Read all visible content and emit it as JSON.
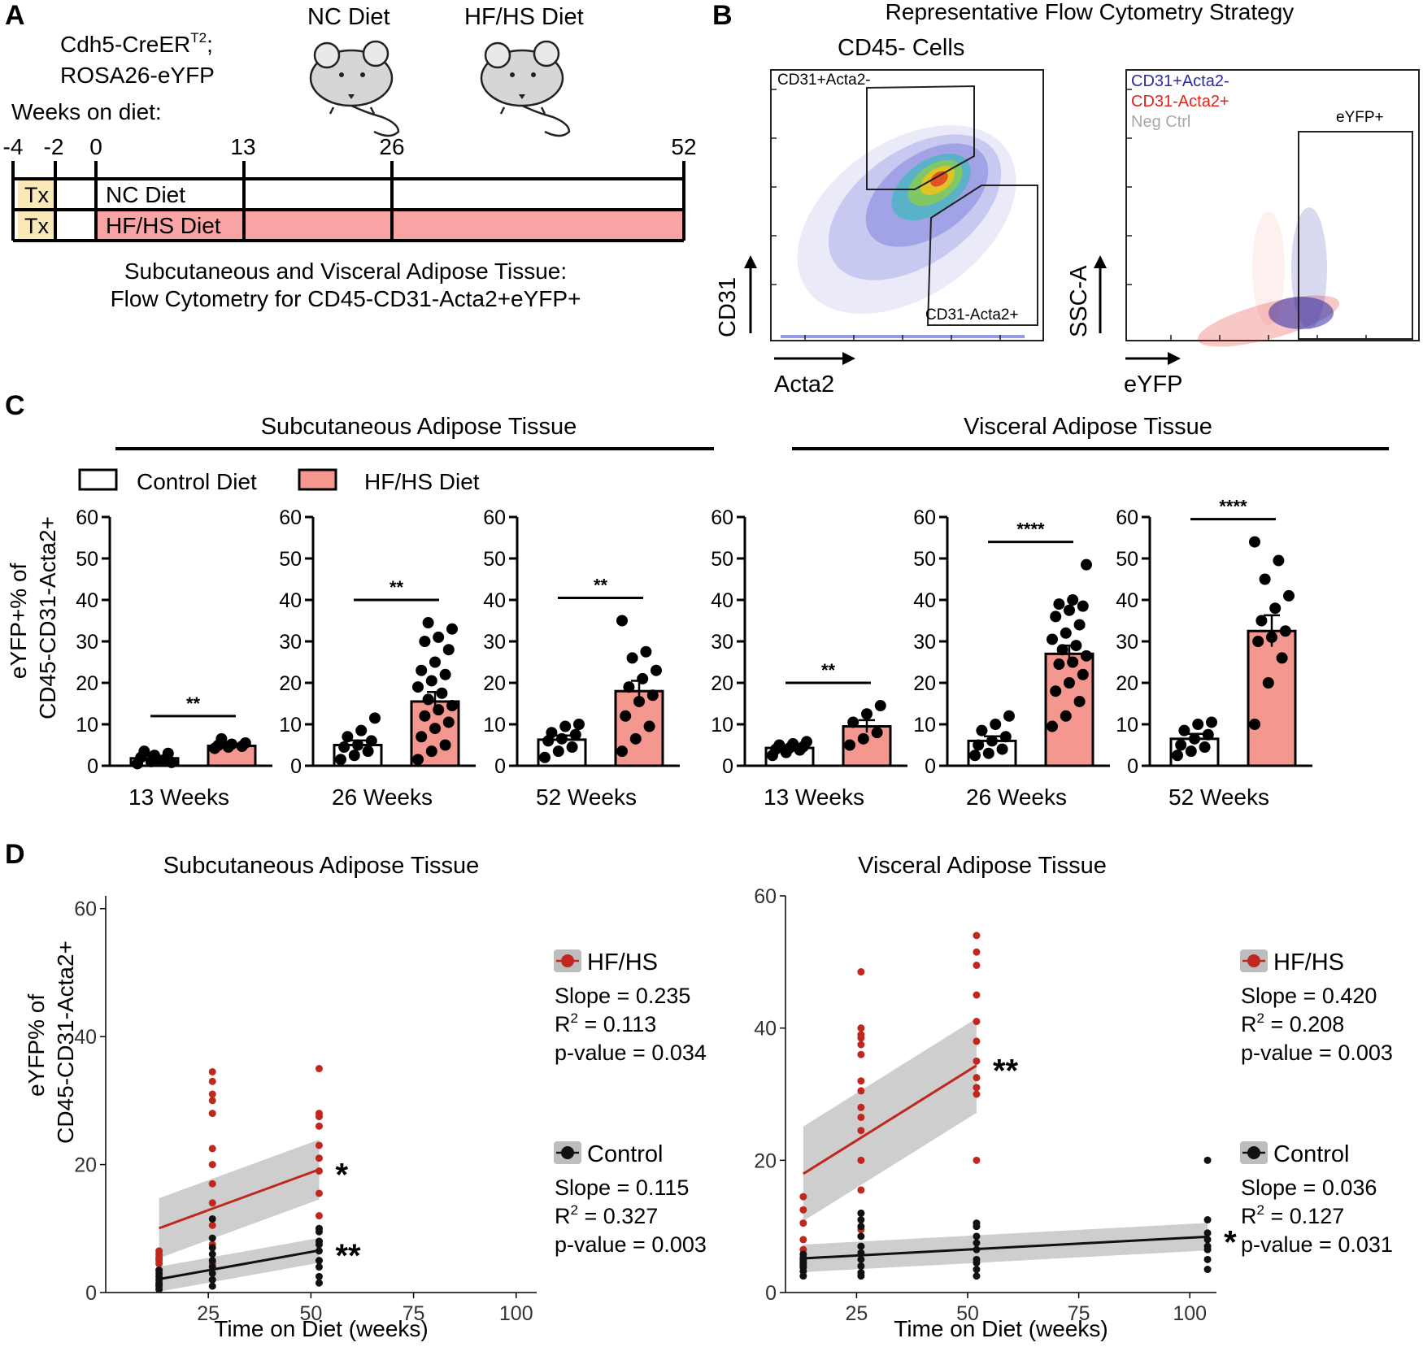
{
  "colors": {
    "hfhs_bar": "#f4978e",
    "hfhs_line": "#c0281f",
    "control_line": "#111111",
    "tx_box": "#fbe8b8",
    "hfhs_timeline": "#f8a4a4",
    "band": "#bdbdbd",
    "gate_blue": "#2b2ba8",
    "gate_red": "#e0241c",
    "gate_grey": "#a8a8a8"
  },
  "panel_a": {
    "letter": "A",
    "mouse_line1": "Cdh5-CreER",
    "mouse_sup": "T2",
    "mouse_line1_end": ";",
    "mouse_line2": "ROSA26-eYFP",
    "nc_diet_title": "NC Diet",
    "hfhs_diet_title": "HF/HS Diet",
    "weeks_label": "Weeks on diet:",
    "week_ticks": [
      "-4",
      "-2",
      "0",
      "13",
      "26",
      "52"
    ],
    "tx_label": "Tx",
    "nc_row_label": "NC Diet",
    "hfhs_row_label": "HF/HS Diet",
    "caption_line1": "Subcutaneous and Visceral Adipose Tissue:",
    "caption_line2": "Flow Cytometry for CD45-CD31-Acta2+eYFP+"
  },
  "panel_b": {
    "letter": "B",
    "title": "Representative Flow Cytometry Strategy",
    "plot1_title": "CD45- Cells",
    "gate_upper": "CD31+Acta2-",
    "gate_lower": "CD31-Acta2+",
    "plot1_ylabel": "CD31",
    "plot1_xlabel": "Acta2",
    "legend": [
      {
        "label": "CD31+Acta2-",
        "color": "#2b2ba8"
      },
      {
        "label": "CD31-Acta2+",
        "color": "#e0241c"
      },
      {
        "label": "Neg Ctrl",
        "color": "#a8a8a8"
      }
    ],
    "gate_eyfp": "eYFP+",
    "plot2_ylabel": "SSC-A",
    "plot2_xlabel": "eYFP"
  },
  "panel_c": {
    "letter": "C",
    "group_sub": "Subcutaneous Adipose Tissue",
    "group_vis": "Visceral Adipose Tissue",
    "legend_control": "Control Diet",
    "legend_hfhs": "HF/HS Diet",
    "ylabel1": "eYFP+% of",
    "ylabel2": "CD45-CD31-Acta2+"
  },
  "panel_d": {
    "letter": "D",
    "ylabel1": "eYFP% of",
    "ylabel2": "CD45-CD31-Acta2+",
    "xlabel": "Time on Diet (weeks)"
  },
  "chart_data": [
    {
      "type": "bar",
      "panel": "C",
      "tissue": "Subcutaneous Adipose Tissue",
      "xlabel": "13 Weeks",
      "ylim": [
        0,
        60
      ],
      "yticks": [
        0,
        10,
        20,
        30,
        40,
        50,
        60
      ],
      "categories": [
        "Control Diet",
        "HF/HS Diet"
      ],
      "series": [
        {
          "name": "Control Diet",
          "mean": 1.8,
          "sem": 0.6,
          "points": [
            0.5,
            1.0,
            1.5,
            2.0,
            2.5,
            3.0,
            3.5,
            1.2,
            0.8
          ]
        },
        {
          "name": "HF/HS Diet",
          "mean": 4.8,
          "sem": 0.4,
          "points": [
            4.2,
            4.5,
            4.7,
            4.9,
            5.2,
            5.5,
            6.5
          ]
        }
      ],
      "significance": "**"
    },
    {
      "type": "bar",
      "panel": "C",
      "tissue": "Subcutaneous Adipose Tissue",
      "xlabel": "26 Weeks",
      "ylim": [
        0,
        60
      ],
      "yticks": [
        0,
        10,
        20,
        30,
        40,
        50,
        60
      ],
      "categories": [
        "Control Diet",
        "HF/HS Diet"
      ],
      "series": [
        {
          "name": "Control Diet",
          "mean": 5.0,
          "sem": 1.1,
          "points": [
            1.5,
            2.5,
            3.5,
            4.5,
            5.0,
            6.0,
            7.0,
            8.5,
            11.5
          ]
        },
        {
          "name": "HF/HS Diet",
          "mean": 15.5,
          "sem": 2.3,
          "points": [
            1.5,
            3.5,
            5.0,
            7.0,
            9.0,
            10.5,
            12.0,
            13.5,
            14.5,
            16.0,
            17.5,
            19.0,
            20.5,
            22.0,
            23.0,
            25.0,
            28.0,
            30.0,
            31.0,
            33.0,
            34.5
          ]
        }
      ],
      "significance": "**"
    },
    {
      "type": "bar",
      "panel": "C",
      "tissue": "Subcutaneous Adipose Tissue",
      "xlabel": "52 Weeks",
      "ylim": [
        0,
        60
      ],
      "yticks": [
        0,
        10,
        20,
        30,
        40,
        50,
        60
      ],
      "categories": [
        "Control Diet",
        "HF/HS Diet"
      ],
      "series": [
        {
          "name": "Control Diet",
          "mean": 6.3,
          "sem": 1.0,
          "points": [
            2.0,
            3.5,
            4.5,
            6.0,
            6.5,
            7.5,
            8.0,
            9.5,
            10.0
          ]
        },
        {
          "name": "HF/HS Diet",
          "mean": 18.0,
          "sem": 2.5,
          "points": [
            3.5,
            6.5,
            9.5,
            12.0,
            15.5,
            17.0,
            19.0,
            21.0,
            23.0,
            26.0,
            27.5,
            35.0
          ]
        }
      ],
      "significance": "**"
    },
    {
      "type": "bar",
      "panel": "C",
      "tissue": "Visceral Adipose Tissue",
      "xlabel": "13 Weeks",
      "ylim": [
        0,
        60
      ],
      "yticks": [
        0,
        10,
        20,
        30,
        40,
        50,
        60
      ],
      "categories": [
        "Control Diet",
        "HF/HS Diet"
      ],
      "series": [
        {
          "name": "Control Diet",
          "mean": 4.3,
          "sem": 0.4,
          "points": [
            2.5,
            3.2,
            3.8,
            4.0,
            4.3,
            4.6,
            5.0,
            5.3,
            5.8
          ]
        },
        {
          "name": "HF/HS Diet",
          "mean": 9.5,
          "sem": 1.5,
          "points": [
            5.0,
            6.5,
            8.0,
            10.5,
            12.5,
            14.5
          ]
        }
      ],
      "significance": "**"
    },
    {
      "type": "bar",
      "panel": "C",
      "tissue": "Visceral Adipose Tissue",
      "xlabel": "26 Weeks",
      "ylim": [
        0,
        60
      ],
      "yticks": [
        0,
        10,
        20,
        30,
        40,
        50,
        60
      ],
      "categories": [
        "Control Diet",
        "HF/HS Diet"
      ],
      "series": [
        {
          "name": "Control Diet",
          "mean": 6.0,
          "sem": 1.1,
          "points": [
            2.5,
            3.0,
            4.0,
            5.0,
            6.0,
            7.0,
            8.5,
            10.0,
            12.0
          ]
        },
        {
          "name": "HF/HS Diet",
          "mean": 27.0,
          "sem": 2.0,
          "points": [
            9.5,
            12.0,
            15.5,
            18.0,
            20.0,
            22.0,
            24.5,
            25.0,
            26.5,
            28.0,
            29.0,
            30.5,
            32.0,
            34.0,
            36.0,
            37.5,
            38.5,
            39.0,
            40.0,
            48.5
          ]
        }
      ],
      "significance": "****"
    },
    {
      "type": "bar",
      "panel": "C",
      "tissue": "Visceral Adipose Tissue",
      "xlabel": "52 Weeks",
      "ylim": [
        0,
        60
      ],
      "yticks": [
        0,
        10,
        20,
        30,
        40,
        50,
        60
      ],
      "categories": [
        "Control Diet",
        "HF/HS Diet"
      ],
      "series": [
        {
          "name": "Control Diet",
          "mean": 6.5,
          "sem": 1.2,
          "points": [
            2.5,
            3.5,
            4.5,
            5.0,
            6.5,
            7.5,
            8.5,
            10.0,
            10.5
          ]
        },
        {
          "name": "HF/HS Diet",
          "mean": 32.5,
          "sem": 3.8,
          "points": [
            10.0,
            20.0,
            26.0,
            30.0,
            31.0,
            32.5,
            35.0,
            38.0,
            41.0,
            45.0,
            49.5,
            54.0
          ]
        }
      ],
      "significance": "****"
    },
    {
      "type": "scatter",
      "panel": "D",
      "title": "Subcutaneous Adipose Tissue",
      "xlabel": "Time on Diet (weeks)",
      "ylabel": "eYFP% of CD45-CD31-Acta2+",
      "xlim": [
        0,
        105
      ],
      "ylim": [
        0,
        62
      ],
      "xticks": [
        25,
        50,
        75,
        100
      ],
      "yticks": [
        0,
        20,
        40,
        60
      ],
      "series": [
        {
          "name": "HF/HS",
          "color": "#c0281f",
          "slope_text": "Slope = 0.235",
          "r2_value": "= 0.113",
          "p_text": "p-value = 0.034",
          "significance": "*",
          "fit": {
            "slope": 0.235,
            "intercept": 7.0,
            "x0": 13,
            "x1": 52,
            "ci": 3.6
          },
          "x": [
            13,
            13,
            13,
            13,
            13,
            13,
            13,
            26,
            26,
            26,
            26,
            26,
            26,
            26,
            26,
            26,
            26,
            26,
            26,
            26,
            52,
            52,
            52,
            52,
            52,
            52,
            52,
            52,
            52,
            52,
            52,
            52
          ],
          "y": [
            3.5,
            4.5,
            5.0,
            5.2,
            5.5,
            6.0,
            6.5,
            2.0,
            4.5,
            7.5,
            10.5,
            14.0,
            17.0,
            20.0,
            22.5,
            28.0,
            30.0,
            31.0,
            33.0,
            34.5,
            5.0,
            8.0,
            10.0,
            12.0,
            15.5,
            19.0,
            21.0,
            23.0,
            26.0,
            27.5,
            28.0,
            35.0
          ]
        },
        {
          "name": "Control",
          "color": "#111111",
          "slope_text": "Slope = 0.115",
          "r2_value": "= 0.327",
          "p_text": "p-value = 0.003",
          "significance": "**",
          "fit": {
            "slope": 0.115,
            "intercept": 0.6,
            "x0": 13,
            "x1": 52,
            "ci": 1.5
          },
          "x": [
            13,
            13,
            13,
            13,
            13,
            13,
            13,
            13,
            26,
            26,
            26,
            26,
            26,
            26,
            26,
            26,
            26,
            52,
            52,
            52,
            52,
            52,
            52,
            52,
            52,
            52
          ],
          "y": [
            0.5,
            1.0,
            1.2,
            1.5,
            2.0,
            2.5,
            3.0,
            3.5,
            1.0,
            2.0,
            3.0,
            4.0,
            5.0,
            6.0,
            7.0,
            8.5,
            11.5,
            1.5,
            2.5,
            4.0,
            5.0,
            6.5,
            7.5,
            8.0,
            9.5,
            10.0
          ]
        }
      ]
    },
    {
      "type": "scatter",
      "panel": "D",
      "title": "Visceral Adipose Tissue",
      "xlabel": "Time on Diet (weeks)",
      "ylabel": "eYFP% of CD45-CD31-Acta2+",
      "xlim": [
        9,
        106
      ],
      "ylim": [
        0,
        60
      ],
      "xticks": [
        25,
        50,
        75,
        100
      ],
      "yticks": [
        0,
        20,
        40,
        60
      ],
      "series": [
        {
          "name": "HF/HS",
          "color": "#c0281f",
          "slope_text": "Slope = 0.420",
          "r2_value": "= 0.208",
          "p_text": "p-value = 0.003",
          "significance": "**",
          "fit": {
            "slope": 0.42,
            "intercept": 12.5,
            "x0": 13,
            "x1": 52,
            "ci": 5.5
          },
          "x": [
            13,
            13,
            13,
            13,
            13,
            13,
            26,
            26,
            26,
            26,
            26,
            26,
            26,
            26,
            26,
            26,
            26,
            26,
            26,
            26,
            26,
            52,
            52,
            52,
            52,
            52,
            52,
            52,
            52,
            52,
            52,
            52,
            52
          ],
          "y": [
            5.0,
            6.5,
            8.0,
            10.5,
            12.5,
            14.5,
            9.5,
            12.0,
            15.5,
            20.0,
            24.5,
            26.5,
            28.0,
            30.5,
            32.0,
            36.0,
            37.5,
            38.5,
            39.0,
            40.0,
            48.5,
            10.0,
            20.0,
            30.0,
            31.0,
            32.5,
            35.0,
            38.0,
            41.0,
            45.0,
            49.5,
            51.5,
            54.0
          ]
        },
        {
          "name": "Control",
          "color": "#111111",
          "slope_text": "Slope = 0.036",
          "r2_value": "= 0.127",
          "p_text": "p-value = 0.031",
          "significance": "*",
          "fit": {
            "slope": 0.036,
            "intercept": 4.7,
            "x0": 13,
            "x1": 104,
            "ci": 1.6
          },
          "x": [
            13,
            13,
            13,
            13,
            13,
            13,
            13,
            13,
            13,
            26,
            26,
            26,
            26,
            26,
            26,
            26,
            26,
            26,
            26,
            52,
            52,
            52,
            52,
            52,
            52,
            52,
            52,
            52,
            104,
            104,
            104,
            104,
            104,
            104,
            104,
            104
          ],
          "y": [
            2.5,
            3.2,
            3.8,
            4.0,
            4.3,
            4.6,
            5.0,
            5.3,
            5.8,
            2.5,
            3.0,
            4.0,
            5.0,
            6.0,
            7.0,
            8.5,
            10.0,
            11.0,
            12.0,
            2.5,
            3.5,
            4.5,
            5.0,
            6.5,
            7.5,
            8.5,
            10.0,
            10.5,
            3.5,
            5.0,
            6.5,
            7.0,
            8.0,
            9.0,
            11.0,
            20.0
          ]
        }
      ]
    }
  ]
}
